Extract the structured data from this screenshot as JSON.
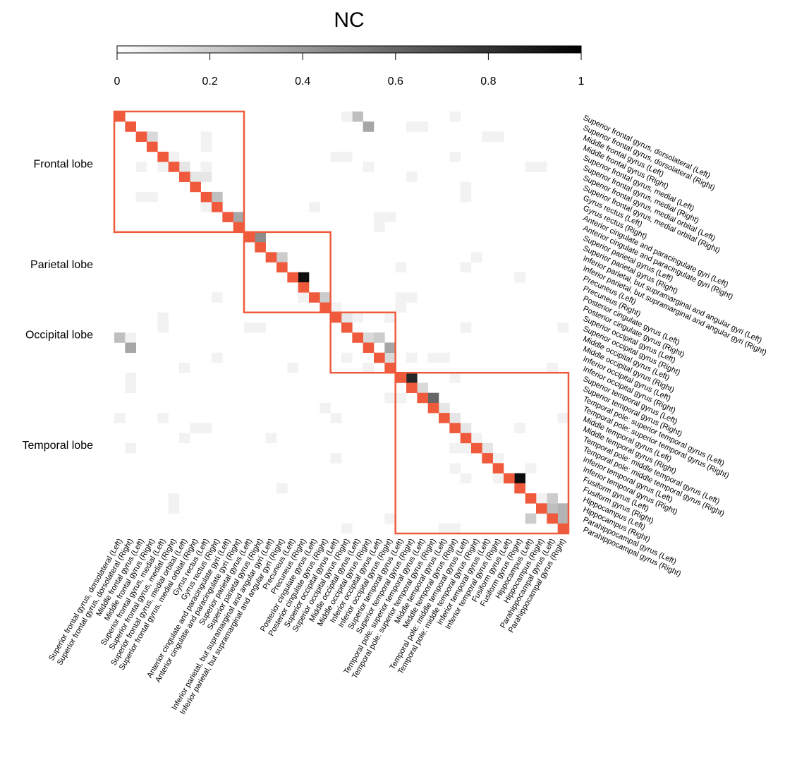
{
  "chart_data": {
    "type": "heatmap",
    "title": "NC",
    "colorbar": {
      "min": 0,
      "max": 1,
      "ticks": [
        0,
        0.2,
        0.4,
        0.6,
        0.8,
        1
      ],
      "tick_labels": [
        "0",
        "0.2",
        "0.4",
        "0.6",
        "0.8",
        "1"
      ],
      "colors": [
        "#ffffff",
        "#000000"
      ]
    },
    "diagonal_color": "#f05a3c",
    "block_color": "#f05a3c",
    "labels": [
      "Superior frontal gyrus, dorsolateral (Left)",
      "Superior frontal gyrus, dorsolateral (Right)",
      "Middle frontal gyrus (Left)",
      "Middle frontal gyrus (Right)",
      "Superior frontal gyrus, medial (Left)",
      "Superior frontal gyrus, medial (Right)",
      "Superior frontal gyrus, medial orbital (Left)",
      "Superior frontal gyrus, medial orbital (Right)",
      "Gyrus rectus (Left)",
      "Gyrus rectus (Right)",
      "Anterior cingulate and paracingulate gyri (Left)",
      "Anterior cingulate and paracingulate gyri (Right)",
      "Superior parietal gyrus (Left)",
      "Superior parietal gyrus (Right)",
      "Inferior parietal, but supramarginal and angular gyri (Left)",
      "Inferior parietal, but supramarginal and angular gyri (Right)",
      "Precuneus (Left)",
      "Precuneus (Right)",
      "Posterior cingulate gyrus (Left)",
      "Posterior cingulate gyrus (Right)",
      "Superior occipital gyrus (Left)",
      "Superior occipital gyrus (Right)",
      "Middle occipital gyrus (Left)",
      "Middle occipital gyrus (Right)",
      "Inferior occipital gyrus (Left)",
      "Inferior occipital gyrus (Right)",
      "Superior temporal gyrus (Left)",
      "Superior temporal gyrus (Right)",
      "Temporal pole: superior temporal gyrus (Left)",
      "Temporal pole: superior temporal gyrus (Right)",
      "Middle temporal gyrus (Left)",
      "Middle temporal gyrus (Right)",
      "Temporal pole: middle temporal gyrus (Left)",
      "Temporal pole: middle temporal gyrus (Right)",
      "Inferior temporal gyrus (Left)",
      "Inferior temporal gyrus (Right)",
      "Fusiform gyrus (Left)",
      "Fusiform gyrus (Right)",
      "Hippocampus (Left)",
      "Hippocampus (Right)",
      "Parahippocampal gyrus (Left)",
      "Parahippocampal gyrus (Right)"
    ],
    "blocks": [
      {
        "name": "Frontal lobe",
        "start": 0,
        "end": 11
      },
      {
        "name": "Parietal lobe",
        "start": 12,
        "end": 19
      },
      {
        "name": "Occipital lobe",
        "start": 20,
        "end": 25
      },
      {
        "name": "Temporal lobe",
        "start": 26,
        "end": 41
      }
    ],
    "cells": [
      [
        2,
        3,
        0.15
      ],
      [
        5,
        6,
        0.1
      ],
      [
        6,
        7,
        0.1
      ],
      [
        6,
        8,
        0.1
      ],
      [
        8,
        9,
        0.25
      ],
      [
        10,
        11,
        0.35
      ],
      [
        12,
        13,
        0.45
      ],
      [
        14,
        15,
        0.2
      ],
      [
        16,
        17,
        0.95
      ],
      [
        18,
        19,
        0.2
      ],
      [
        18,
        19,
        0.2
      ],
      [
        20,
        21,
        0.1
      ],
      [
        22,
        23,
        0.15
      ],
      [
        24,
        25,
        0.15
      ],
      [
        22,
        24,
        0.2
      ],
      [
        23,
        25,
        0.35
      ],
      [
        26,
        27,
        0.85
      ],
      [
        28,
        29,
        0.6
      ],
      [
        27,
        28,
        0.15
      ],
      [
        29,
        30,
        0.1
      ],
      [
        30,
        31,
        0.1
      ],
      [
        31,
        32,
        0.1
      ],
      [
        32,
        33,
        0.05
      ],
      [
        33,
        34,
        0.1
      ],
      [
        34,
        35,
        0.05
      ],
      [
        36,
        37,
        0.95
      ],
      [
        38,
        39,
        0.1
      ],
      [
        39,
        40,
        0.25
      ],
      [
        40,
        41,
        0.3
      ],
      [
        38,
        40,
        0.2
      ],
      [
        39,
        41,
        0.3
      ],
      [
        0,
        22,
        0.25
      ],
      [
        1,
        23,
        0.35
      ],
      [
        0,
        21,
        0.05
      ],
      [
        1,
        27,
        0.05
      ],
      [
        1,
        28,
        0.05
      ],
      [
        0,
        31,
        0.05
      ],
      [
        2,
        34,
        0.05
      ],
      [
        2,
        35,
        0.05
      ],
      [
        3,
        8,
        0.05
      ],
      [
        4,
        5,
        0.05
      ],
      [
        2,
        8,
        0.05
      ],
      [
        4,
        20,
        0.05
      ],
      [
        4,
        21,
        0.05
      ],
      [
        4,
        31,
        0.05
      ],
      [
        5,
        23,
        0.05
      ],
      [
        5,
        38,
        0.05
      ],
      [
        5,
        39,
        0.05
      ],
      [
        5,
        2,
        0.05
      ],
      [
        5,
        4,
        0.05
      ],
      [
        5,
        8,
        0.05
      ],
      [
        6,
        27,
        0.05
      ],
      [
        7,
        32,
        0.05
      ],
      [
        8,
        2,
        0.05
      ],
      [
        8,
        3,
        0.05
      ],
      [
        8,
        32,
        0.05
      ],
      [
        9,
        8,
        0.05
      ],
      [
        9,
        18,
        0.05
      ],
      [
        10,
        24,
        0.05
      ],
      [
        10,
        25,
        0.05
      ],
      [
        11,
        24,
        0.05
      ],
      [
        14,
        33,
        0.05
      ],
      [
        15,
        26,
        0.05
      ],
      [
        15,
        32,
        0.05
      ],
      [
        16,
        37,
        0.05
      ],
      [
        18,
        9,
        0.05
      ],
      [
        18,
        26,
        0.05
      ],
      [
        18,
        27,
        0.05
      ],
      [
        18,
        17,
        0.05
      ],
      [
        19,
        20,
        0.05
      ],
      [
        19,
        26,
        0.05
      ],
      [
        20,
        4,
        0.05
      ],
      [
        20,
        22,
        0.05
      ],
      [
        20,
        25,
        0.05
      ],
      [
        21,
        12,
        0.05
      ],
      [
        21,
        13,
        0.05
      ],
      [
        21,
        32,
        0.05
      ],
      [
        21,
        41,
        0.05
      ],
      [
        21,
        4,
        0.05
      ],
      [
        22,
        0,
        0.25
      ],
      [
        22,
        1,
        0.05
      ],
      [
        23,
        1,
        0.35
      ],
      [
        24,
        9,
        0.05
      ],
      [
        24,
        21,
        0.05
      ],
      [
        24,
        27,
        0.05
      ],
      [
        24,
        29,
        0.05
      ],
      [
        24,
        30,
        0.05
      ],
      [
        25,
        16,
        0.05
      ],
      [
        25,
        23,
        0.05
      ],
      [
        25,
        40,
        0.05
      ],
      [
        25,
        6,
        0.05
      ],
      [
        26,
        1,
        0.05
      ],
      [
        26,
        31,
        0.05
      ],
      [
        27,
        1,
        0.05
      ],
      [
        28,
        25,
        0.05
      ],
      [
        28,
        26,
        0.05
      ],
      [
        29,
        19,
        0.05
      ],
      [
        30,
        0,
        0.05
      ],
      [
        30,
        4,
        0.05
      ],
      [
        30,
        20,
        0.05
      ],
      [
        30,
        41,
        0.05
      ],
      [
        31,
        7,
        0.05
      ],
      [
        31,
        8,
        0.05
      ],
      [
        31,
        37,
        0.05
      ],
      [
        32,
        6,
        0.05
      ],
      [
        32,
        14,
        0.05
      ],
      [
        33,
        1,
        0.05
      ],
      [
        33,
        31,
        0.05
      ],
      [
        33,
        32,
        0.05
      ],
      [
        34,
        20,
        0.05
      ],
      [
        35,
        31,
        0.05
      ],
      [
        35,
        38,
        0.05
      ],
      [
        36,
        32,
        0.05
      ],
      [
        36,
        35,
        0.05
      ],
      [
        37,
        15,
        0.05
      ],
      [
        38,
        5,
        0.05
      ],
      [
        38,
        39,
        0.05
      ],
      [
        39,
        5,
        0.05
      ],
      [
        39,
        39,
        0.0
      ],
      [
        40,
        25,
        0.05
      ],
      [
        40,
        38,
        0.2
      ],
      [
        41,
        21,
        0.05
      ],
      [
        41,
        30,
        0.05
      ],
      [
        41,
        31,
        0.05
      ]
    ]
  }
}
